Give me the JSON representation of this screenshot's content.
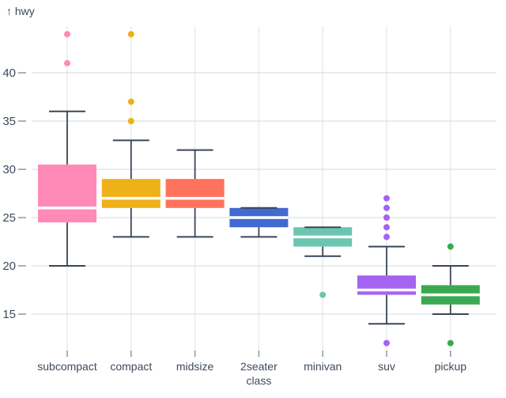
{
  "chart": {
    "colors": {
      "background": "#ffffff",
      "axis_text": "#3d4a5c",
      "whisker_stroke": "#3a4656",
      "grid_horizontal": "#e2e6ea",
      "grid_vertical": "#e9ebee",
      "tick_mark": "#8f97a3",
      "median_line": "#ffffff"
    }
  },
  "chart_data": {
    "type": "boxplot",
    "title": "",
    "ylabel": "hwy",
    "ylabel_display": "↑ hwy",
    "xlabel": "class",
    "ylim": [
      11,
      45.5
    ],
    "yticks": [
      15,
      20,
      25,
      30,
      35,
      40
    ],
    "grid": true,
    "categories": [
      "subcompact",
      "compact",
      "midsize",
      "2seater",
      "minivan",
      "suv",
      "pickup"
    ],
    "series": [
      {
        "name": "subcompact",
        "color": "#ff8ab7",
        "whisker_low": 20,
        "q1": 24.5,
        "median": 26,
        "q3": 30.5,
        "whisker_high": 36,
        "outliers": [
          41,
          44
        ]
      },
      {
        "name": "compact",
        "color": "#efb118",
        "whisker_low": 23,
        "q1": 26,
        "median": 27,
        "q3": 29,
        "whisker_high": 33,
        "outliers": [
          35,
          37,
          44
        ]
      },
      {
        "name": "midsize",
        "color": "#ff725c",
        "whisker_low": 23,
        "q1": 26,
        "median": 27,
        "q3": 29,
        "whisker_high": 32,
        "outliers": []
      },
      {
        "name": "2seater",
        "color": "#4269d0",
        "whisker_low": 23,
        "q1": 24,
        "median": 25,
        "q3": 26,
        "whisker_high": 26,
        "outliers": []
      },
      {
        "name": "minivan",
        "color": "#6cc5b0",
        "whisker_low": 21,
        "q1": 22,
        "median": 23,
        "q3": 24,
        "whisker_high": 24,
        "outliers": [
          17
        ]
      },
      {
        "name": "suv",
        "color": "#a463f2",
        "whisker_low": 14,
        "q1": 17,
        "median": 17.5,
        "q3": 19,
        "whisker_high": 22,
        "outliers": [
          23,
          24,
          25,
          26,
          27,
          12
        ]
      },
      {
        "name": "pickup",
        "color": "#3ca951",
        "whisker_low": 15,
        "q1": 16,
        "median": 17,
        "q3": 18,
        "whisker_high": 20,
        "outliers": [
          22,
          12
        ]
      }
    ]
  }
}
